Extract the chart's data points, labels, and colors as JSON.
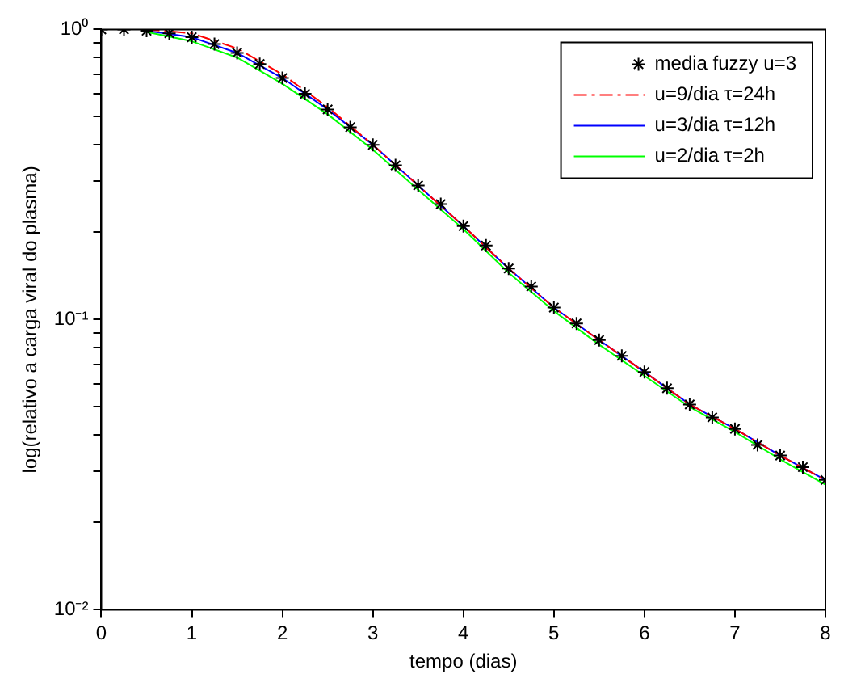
{
  "chart_data": {
    "type": "line",
    "xlabel": "tempo (dias)",
    "ylabel": "log(relativo a carga viral do plasma)",
    "log": "y",
    "grid": false,
    "legend": "top right",
    "xlim": [
      0,
      8
    ],
    "xticks": [
      0,
      1,
      2,
      3,
      4,
      5,
      6,
      7,
      8
    ],
    "ylim": [
      0.01,
      1
    ],
    "yticks": [
      {
        "value": 0.01,
        "label": "10⁻²"
      },
      {
        "value": 0.02,
        "label": null
      },
      {
        "value": 0.03,
        "label": null
      },
      {
        "value": 0.04,
        "label": null
      },
      {
        "value": 0.05,
        "label": null
      },
      {
        "value": 0.06,
        "label": null
      },
      {
        "value": 0.07,
        "label": null
      },
      {
        "value": 0.08,
        "label": null
      },
      {
        "value": 0.09,
        "label": null
      },
      {
        "value": 0.1,
        "label": "10⁻¹"
      },
      {
        "value": 0.2,
        "label": null
      },
      {
        "value": 0.3,
        "label": null
      },
      {
        "value": 0.4,
        "label": null
      },
      {
        "value": 0.5,
        "label": null
      },
      {
        "value": 0.6,
        "label": null
      },
      {
        "value": 0.7,
        "label": null
      },
      {
        "value": 0.8,
        "label": null
      },
      {
        "value": 0.9,
        "label": null
      },
      {
        "value": 1,
        "label": "10⁰"
      }
    ],
    "series": [
      {
        "name": "media fuzzy u=3",
        "type": "scatter",
        "marker": "cross",
        "color": "#000000",
        "x": [
          0,
          0.25,
          0.5,
          0.75,
          1,
          1.25,
          1.5,
          1.75,
          2,
          2.25,
          2.5,
          2.75,
          3,
          3.25,
          3.5,
          3.75,
          4,
          4.25,
          4.5,
          4.75,
          5,
          5.25,
          5.5,
          5.75,
          6,
          6.25,
          6.5,
          6.75,
          7,
          7.25,
          7.5,
          7.75,
          8
        ],
        "values": [
          1,
          1,
          0.99,
          0.97,
          0.94,
          0.89,
          0.83,
          0.76,
          0.68,
          0.6,
          0.53,
          0.46,
          0.4,
          0.34,
          0.29,
          0.25,
          0.21,
          0.18,
          0.15,
          0.13,
          0.11,
          0.097,
          0.085,
          0.075,
          0.066,
          0.058,
          0.051,
          0.046,
          0.042,
          0.037,
          0.034,
          0.031,
          0.028
        ]
      },
      {
        "name": "u=9/dia τ=24h",
        "line_style": "dashdot",
        "marker": "none",
        "color": "#ff0000",
        "x": [
          0.5,
          1,
          1.5,
          2,
          2.5,
          3,
          3.5,
          4,
          4.5,
          5,
          5.5,
          6,
          6.5,
          7,
          7.5,
          8
        ],
        "values": [
          1,
          0.97,
          0.86,
          0.7,
          0.54,
          0.4,
          0.29,
          0.21,
          0.15,
          0.11,
          0.085,
          0.066,
          0.051,
          0.042,
          0.034,
          0.028
        ]
      },
      {
        "name": "u=3/dia τ=12h",
        "line_style": "solid",
        "marker": "none",
        "color": "#0000ff",
        "x": [
          0.5,
          1,
          1.5,
          2,
          2.5,
          3,
          3.5,
          4,
          4.5,
          5,
          5.5,
          6,
          6.5,
          7,
          7.5,
          8
        ],
        "values": [
          0.99,
          0.94,
          0.83,
          0.68,
          0.53,
          0.4,
          0.29,
          0.21,
          0.15,
          0.11,
          0.085,
          0.066,
          0.051,
          0.042,
          0.034,
          0.028
        ]
      },
      {
        "name": "u=2/dia τ=2h",
        "line_style": "solid",
        "marker": "none",
        "color": "#00ff00",
        "x": [
          0.5,
          1,
          1.5,
          2,
          2.5,
          3,
          3.5,
          4,
          4.5,
          5,
          5.5,
          6,
          6.5,
          7,
          7.5,
          8
        ],
        "values": [
          0.98,
          0.91,
          0.8,
          0.65,
          0.51,
          0.385,
          0.28,
          0.205,
          0.145,
          0.107,
          0.082,
          0.064,
          0.05,
          0.041,
          0.033,
          0.027
        ]
      }
    ]
  }
}
